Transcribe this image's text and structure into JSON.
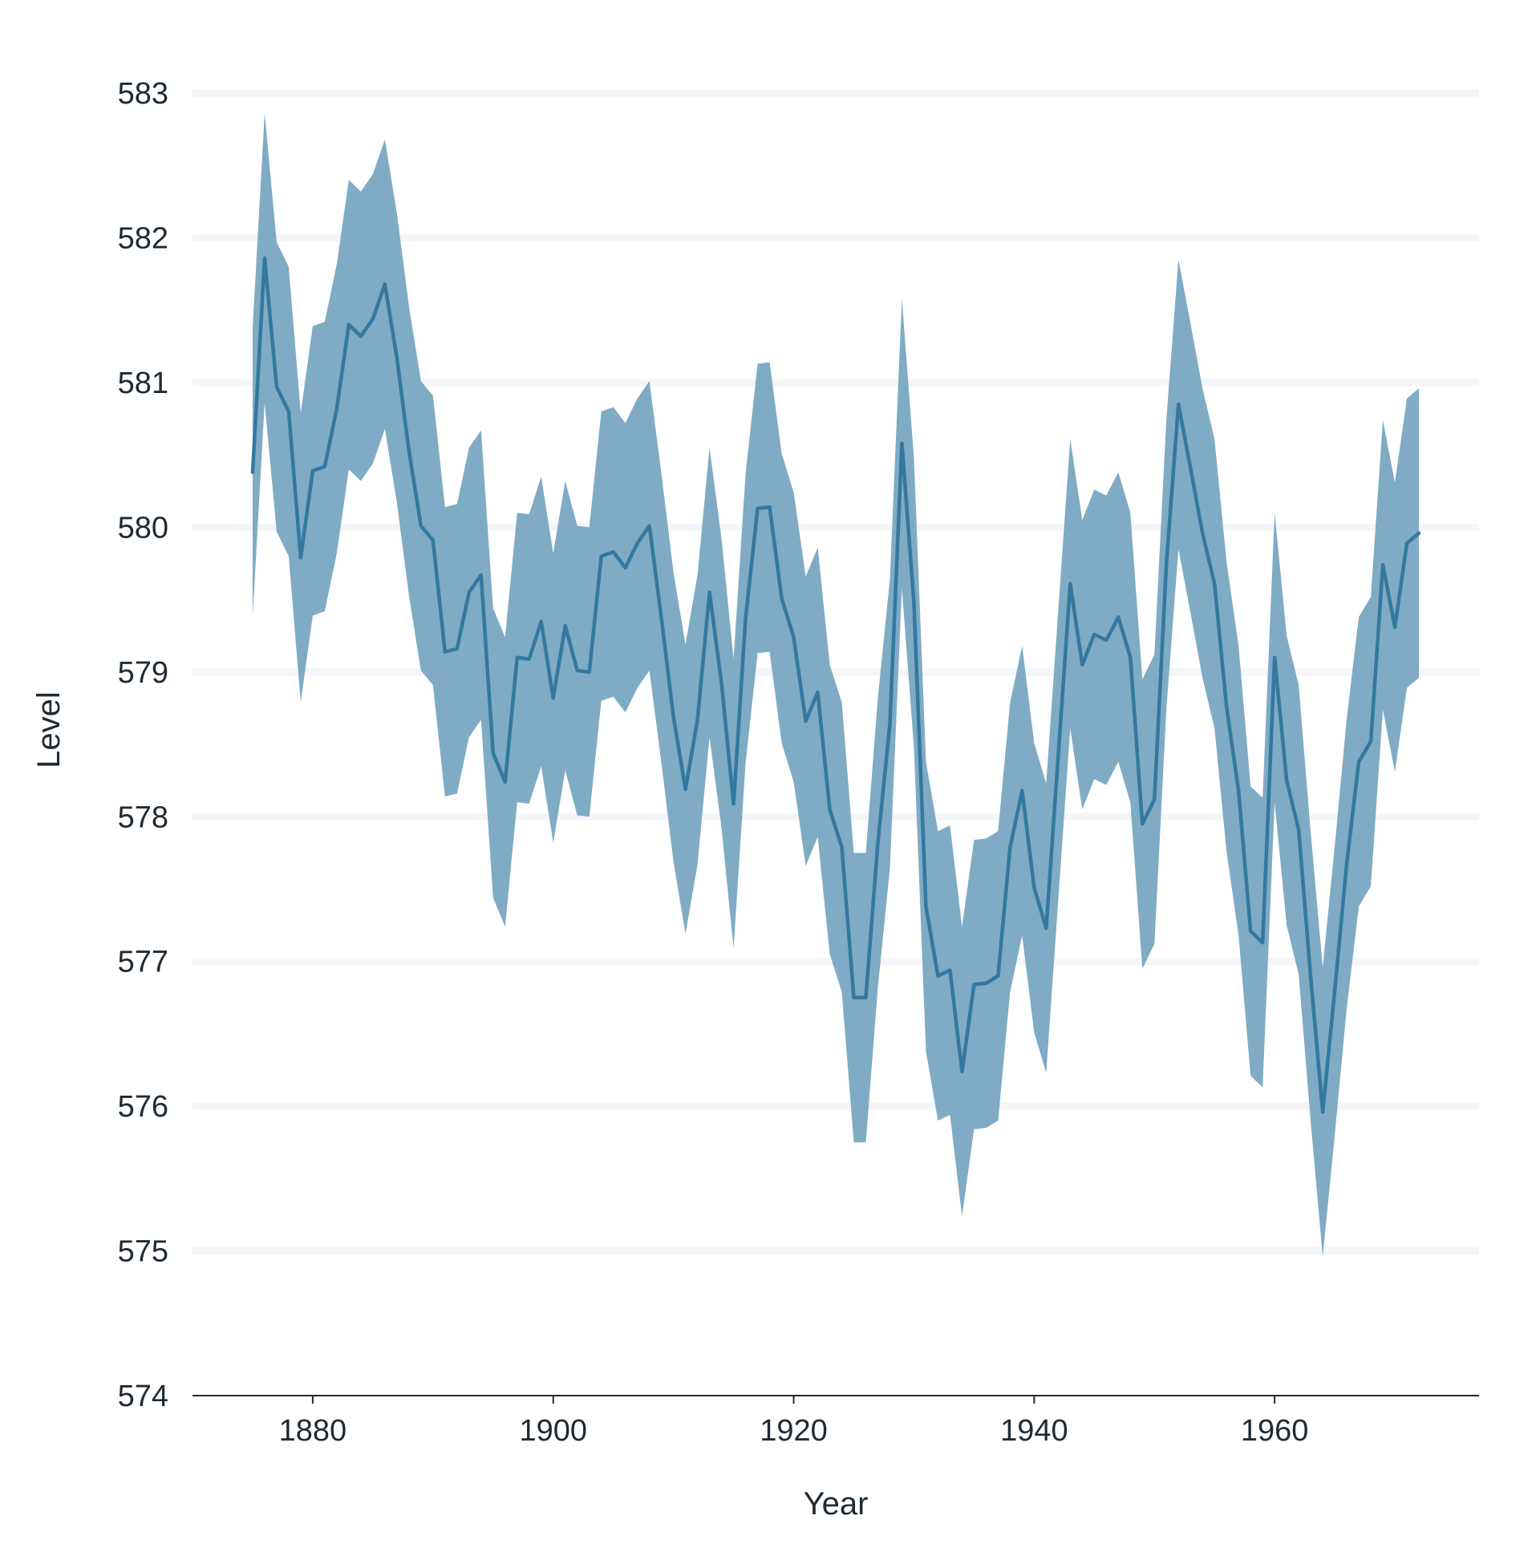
{
  "chart_data": {
    "type": "area",
    "title": "",
    "xlabel": "Year",
    "ylabel": "Level",
    "xlim": [
      1870,
      1977
    ],
    "ylim": [
      574,
      583.2
    ],
    "x_ticks": [
      1880,
      1900,
      1920,
      1940,
      1960
    ],
    "y_ticks": [
      574,
      575,
      576,
      577,
      578,
      579,
      580,
      581,
      582,
      583
    ],
    "grid": "horizontal",
    "legend": "none",
    "colors": {
      "band": "#7FABC5",
      "line": "#3478A0",
      "grid": "#F3F5F8",
      "axis": "#1f2a33"
    },
    "series": [
      {
        "x": [
          1875,
          1876,
          1877,
          1878,
          1879,
          1880,
          1881,
          1882,
          1883,
          1884,
          1885,
          1886,
          1887,
          1888,
          1889,
          1890,
          1891,
          1892,
          1893,
          1894,
          1895,
          1896,
          1897,
          1898,
          1899,
          1900,
          1901,
          1902,
          1903,
          1904,
          1905,
          1906,
          1907,
          1908,
          1909,
          1910,
          1911,
          1912,
          1913,
          1914,
          1915,
          1916,
          1917,
          1918,
          1919,
          1920,
          1921,
          1922,
          1923,
          1924,
          1925,
          1926,
          1927,
          1928,
          1929,
          1930,
          1931,
          1932,
          1933,
          1934,
          1935,
          1936,
          1937,
          1938,
          1939,
          1940,
          1941,
          1942,
          1943,
          1944,
          1945,
          1946,
          1947,
          1948,
          1949,
          1950,
          1951,
          1952,
          1953,
          1954,
          1955,
          1956,
          1957,
          1958,
          1959,
          1960,
          1961,
          1962,
          1963,
          1964,
          1965,
          1966,
          1967,
          1968,
          1969,
          1970,
          1971,
          1972
        ],
        "y": [
          580.38,
          581.86,
          580.97,
          580.8,
          579.79,
          580.39,
          580.42,
          580.82,
          581.4,
          581.32,
          581.44,
          581.68,
          581.17,
          580.53,
          580.01,
          579.91,
          579.14,
          579.16,
          579.55,
          579.67,
          578.44,
          578.24,
          579.1,
          579.09,
          579.35,
          578.82,
          579.32,
          579.01,
          579.0,
          579.8,
          579.83,
          579.72,
          579.89,
          580.01,
          579.37,
          578.69,
          578.19,
          578.67,
          579.55,
          578.92,
          578.09,
          579.37,
          580.13,
          580.14,
          579.51,
          579.24,
          578.66,
          578.86,
          578.05,
          577.79,
          576.75,
          576.75,
          577.82,
          578.64,
          580.58,
          579.48,
          577.38,
          576.9,
          576.94,
          576.24,
          576.84,
          576.85,
          576.9,
          577.79,
          578.18,
          577.51,
          577.23,
          578.42,
          579.61,
          579.05,
          579.26,
          579.22,
          579.38,
          579.1,
          577.95,
          578.12,
          579.75,
          580.85,
          580.41,
          579.96,
          579.61,
          578.76,
          578.18,
          577.21,
          577.13,
          579.1,
          578.25,
          577.91,
          576.89,
          575.96,
          576.8,
          577.68,
          578.38,
          578.52,
          579.74,
          579.31,
          579.89,
          579.96
        ],
        "lower": [
          579.38,
          580.86,
          579.97,
          579.8,
          578.79,
          579.39,
          579.42,
          579.82,
          580.4,
          580.32,
          580.44,
          580.68,
          580.17,
          579.53,
          579.01,
          578.91,
          578.14,
          578.16,
          578.55,
          578.67,
          577.44,
          577.24,
          578.1,
          578.09,
          578.35,
          577.82,
          578.32,
          578.01,
          578.0,
          578.8,
          578.83,
          578.72,
          578.89,
          579.01,
          578.37,
          577.69,
          577.19,
          577.67,
          578.55,
          577.92,
          577.09,
          578.37,
          579.13,
          579.14,
          578.51,
          578.24,
          577.66,
          577.86,
          577.05,
          576.79,
          575.75,
          575.75,
          576.82,
          577.64,
          579.58,
          578.48,
          576.38,
          575.9,
          575.94,
          575.24,
          575.84,
          575.85,
          575.9,
          576.79,
          577.18,
          576.51,
          576.23,
          577.42,
          578.61,
          578.05,
          578.26,
          578.22,
          578.38,
          578.1,
          576.95,
          577.12,
          578.75,
          579.85,
          579.41,
          578.96,
          578.61,
          577.76,
          577.18,
          576.21,
          576.13,
          578.1,
          577.25,
          576.91,
          575.89,
          574.96,
          575.8,
          576.68,
          577.38,
          577.52,
          578.74,
          578.31,
          578.89,
          578.96
        ],
        "upper": [
          581.38,
          582.86,
          581.97,
          581.8,
          580.79,
          581.39,
          581.42,
          581.82,
          582.4,
          582.32,
          582.44,
          582.68,
          582.17,
          581.53,
          581.01,
          580.91,
          580.14,
          580.16,
          580.55,
          580.67,
          579.44,
          579.24,
          580.1,
          580.09,
          580.35,
          579.82,
          580.32,
          580.01,
          580.0,
          580.8,
          580.83,
          580.72,
          580.89,
          581.01,
          580.37,
          579.69,
          579.19,
          579.67,
          580.55,
          579.92,
          579.09,
          580.37,
          581.13,
          581.14,
          580.51,
          580.24,
          579.66,
          579.86,
          579.05,
          578.79,
          577.75,
          577.75,
          578.82,
          579.64,
          581.58,
          580.48,
          578.38,
          577.9,
          577.94,
          577.24,
          577.84,
          577.85,
          577.9,
          578.79,
          579.18,
          578.51,
          578.23,
          579.42,
          580.61,
          580.05,
          580.26,
          580.22,
          580.38,
          580.1,
          578.95,
          579.12,
          580.75,
          581.85,
          581.41,
          580.96,
          580.61,
          579.76,
          579.18,
          578.21,
          578.13,
          580.1,
          579.25,
          578.91,
          577.89,
          576.96,
          577.8,
          578.68,
          579.38,
          579.52,
          580.74,
          580.31,
          580.89,
          580.96
        ]
      }
    ]
  }
}
